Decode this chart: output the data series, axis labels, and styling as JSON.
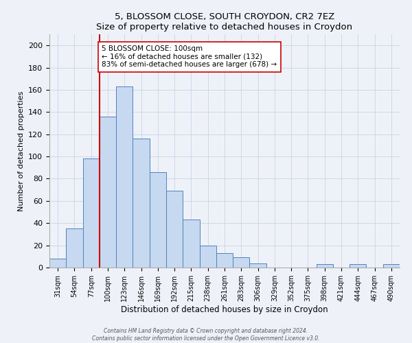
{
  "title1": "5, BLOSSOM CLOSE, SOUTH CROYDON, CR2 7EZ",
  "title2": "Size of property relative to detached houses in Croydon",
  "xlabel": "Distribution of detached houses by size in Croydon",
  "ylabel": "Number of detached properties",
  "bar_labels": [
    "31sqm",
    "54sqm",
    "77sqm",
    "100sqm",
    "123sqm",
    "146sqm",
    "169sqm",
    "192sqm",
    "215sqm",
    "238sqm",
    "261sqm",
    "283sqm",
    "306sqm",
    "329sqm",
    "352sqm",
    "375sqm",
    "398sqm",
    "421sqm",
    "444sqm",
    "467sqm",
    "490sqm"
  ],
  "bar_values": [
    8,
    35,
    98,
    136,
    163,
    116,
    86,
    69,
    43,
    20,
    13,
    9,
    4,
    0,
    0,
    0,
    3,
    0,
    3,
    0,
    3
  ],
  "bar_color": "#c6d9f0",
  "bar_edge_color": "#4f81bd",
  "vline_x": 3,
  "vline_color": "#cc0000",
  "annotation_title": "5 BLOSSOM CLOSE: 100sqm",
  "annotation_line1": "← 16% of detached houses are smaller (132)",
  "annotation_line2": "83% of semi-detached houses are larger (678) →",
  "annotation_box_edge": "#cc0000",
  "ylim": [
    0,
    210
  ],
  "yticks": [
    0,
    20,
    40,
    60,
    80,
    100,
    120,
    140,
    160,
    180,
    200
  ],
  "footnote1": "Contains HM Land Registry data © Crown copyright and database right 2024.",
  "footnote2": "Contains public sector information licensed under the Open Government Licence v3.0.",
  "bg_color": "#eef2f8"
}
